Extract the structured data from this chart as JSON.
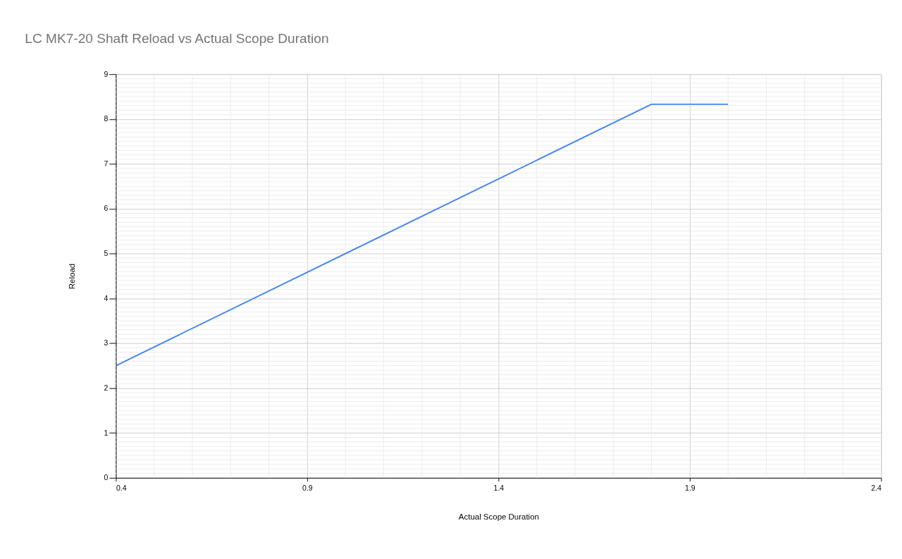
{
  "chart_data": {
    "type": "line",
    "title": "LC MK7-20 Shaft Reload vs Actual Scope Duration",
    "xlabel": "Actual Scope Duration",
    "ylabel": "Reload",
    "x": [
      0.4,
      1.8,
      2.0
    ],
    "series": [
      {
        "color": "#4285f4",
        "values": [
          2.5,
          8.33,
          8.33
        ]
      }
    ],
    "xlim": [
      0.4,
      2.4
    ],
    "xticks": [
      0.4,
      {
        "value": 0.5,
        "label": null
      },
      {
        "value": 0.6,
        "label": null
      },
      {
        "value": 0.7,
        "label": null
      },
      {
        "value": 0.8,
        "label": null
      },
      0.9,
      {
        "value": 1.0,
        "label": null
      },
      {
        "value": 1.1,
        "label": null
      },
      {
        "value": 1.2,
        "label": null
      },
      {
        "value": 1.3,
        "label": null
      },
      1.4,
      {
        "value": 1.5,
        "label": null
      },
      {
        "value": 1.6,
        "label": null
      },
      {
        "value": 1.7,
        "label": null
      },
      {
        "value": 1.8,
        "label": null
      },
      1.9,
      {
        "value": 2.0,
        "label": null
      },
      {
        "value": 2.1,
        "label": null
      },
      {
        "value": 2.2,
        "label": null
      },
      {
        "value": 2.3,
        "label": null
      },
      2.4
    ],
    "ylim": [
      0,
      9
    ],
    "yticks": [
      0,
      {
        "value": 0.1,
        "label": null
      },
      {
        "value": 0.2,
        "label": null
      },
      {
        "value": 0.3,
        "label": null
      },
      {
        "value": 0.4,
        "label": null
      },
      {
        "value": 0.5,
        "label": null
      },
      {
        "value": 0.6,
        "label": null
      },
      {
        "value": 0.7,
        "label": null
      },
      {
        "value": 0.8,
        "label": null
      },
      {
        "value": 0.9,
        "label": null
      },
      1,
      {
        "value": 1.1,
        "label": null
      },
      {
        "value": 1.2,
        "label": null
      },
      {
        "value": 1.3,
        "label": null
      },
      {
        "value": 1.4,
        "label": null
      },
      {
        "value": 1.5,
        "label": null
      },
      {
        "value": 1.6,
        "label": null
      },
      {
        "value": 1.7,
        "label": null
      },
      {
        "value": 1.8,
        "label": null
      },
      {
        "value": 1.9,
        "label": null
      },
      2,
      {
        "value": 2.1,
        "label": null
      },
      {
        "value": 2.2,
        "label": null
      },
      {
        "value": 2.3,
        "label": null
      },
      {
        "value": 2.4,
        "label": null
      },
      {
        "value": 2.5,
        "label": null
      },
      {
        "value": 2.6,
        "label": null
      },
      {
        "value": 2.7,
        "label": null
      },
      {
        "value": 2.8,
        "label": null
      },
      {
        "value": 2.9,
        "label": null
      },
      3,
      {
        "value": 3.1,
        "label": null
      },
      {
        "value": 3.2,
        "label": null
      },
      {
        "value": 3.3,
        "label": null
      },
      {
        "value": 3.4,
        "label": null
      },
      {
        "value": 3.5,
        "label": null
      },
      {
        "value": 3.6,
        "label": null
      },
      {
        "value": 3.7,
        "label": null
      },
      {
        "value": 3.8,
        "label": null
      },
      {
        "value": 3.9,
        "label": null
      },
      4,
      {
        "value": 4.1,
        "label": null
      },
      {
        "value": 4.2,
        "label": null
      },
      {
        "value": 4.3,
        "label": null
      },
      {
        "value": 4.4,
        "label": null
      },
      {
        "value": 4.5,
        "label": null
      },
      {
        "value": 4.6,
        "label": null
      },
      {
        "value": 4.7,
        "label": null
      },
      {
        "value": 4.8,
        "label": null
      },
      {
        "value": 4.9,
        "label": null
      },
      5,
      {
        "value": 5.1,
        "label": null
      },
      {
        "value": 5.2,
        "label": null
      },
      {
        "value": 5.3,
        "label": null
      },
      {
        "value": 5.4,
        "label": null
      },
      {
        "value": 5.5,
        "label": null
      },
      {
        "value": 5.6,
        "label": null
      },
      {
        "value": 5.7,
        "label": null
      },
      {
        "value": 5.8,
        "label": null
      },
      {
        "value": 5.9,
        "label": null
      },
      6,
      {
        "value": 6.1,
        "label": null
      },
      {
        "value": 6.2,
        "label": null
      },
      {
        "value": 6.3,
        "label": null
      },
      {
        "value": 6.4,
        "label": null
      },
      {
        "value": 6.5,
        "label": null
      },
      {
        "value": 6.6,
        "label": null
      },
      {
        "value": 6.7,
        "label": null
      },
      {
        "value": 6.8,
        "label": null
      },
      {
        "value": 6.9,
        "label": null
      },
      7,
      {
        "value": 7.1,
        "label": null
      },
      {
        "value": 7.2,
        "label": null
      },
      {
        "value": 7.3,
        "label": null
      },
      {
        "value": 7.4,
        "label": null
      },
      {
        "value": 7.5,
        "label": null
      },
      {
        "value": 7.6,
        "label": null
      },
      {
        "value": 7.7,
        "label": null
      },
      {
        "value": 7.8,
        "label": null
      },
      {
        "value": 7.9,
        "label": null
      },
      8,
      {
        "value": 8.1,
        "label": null
      },
      {
        "value": 8.2,
        "label": null
      },
      {
        "value": 8.3,
        "label": null
      },
      {
        "value": 8.4,
        "label": null
      },
      {
        "value": 8.5,
        "label": null
      },
      {
        "value": 8.6,
        "label": null
      },
      {
        "value": 8.7,
        "label": null
      },
      {
        "value": 8.8,
        "label": null
      },
      {
        "value": 8.9,
        "label": null
      },
      9
    ],
    "grid": true,
    "marker": "none",
    "line_style": "solid"
  }
}
